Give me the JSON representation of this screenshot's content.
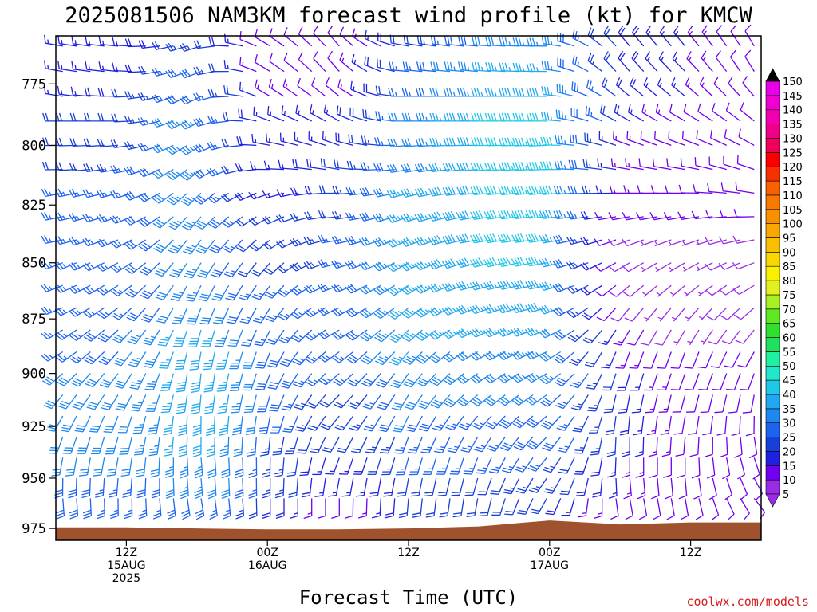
{
  "chart_data": {
    "type": "wind-barb-profile",
    "title": "2025081506 NAM3KM forecast wind profile (kt) for KMCW",
    "xlabel": "Forecast Time (UTC)",
    "ylabel": "",
    "y_ticks": [
      775,
      800,
      825,
      850,
      875,
      900,
      925,
      950,
      975
    ],
    "y_range_hPa": [
      981,
      756
    ],
    "x_ticks": [
      {
        "hour": 6,
        "lines": [
          "12Z",
          "15AUG",
          "2025"
        ]
      },
      {
        "hour": 18,
        "lines": [
          "00Z",
          "16AUG"
        ]
      },
      {
        "hour": 30,
        "lines": [
          "12Z"
        ]
      },
      {
        "hour": 42,
        "lines": [
          "00Z",
          "17AUG"
        ]
      },
      {
        "hour": 54,
        "lines": [
          "12Z"
        ]
      }
    ],
    "x_range_hours": [
      0,
      60
    ],
    "colorbar": {
      "levels": [
        5,
        10,
        15,
        20,
        25,
        30,
        35,
        40,
        45,
        50,
        55,
        60,
        65,
        70,
        75,
        80,
        85,
        90,
        95,
        100,
        105,
        110,
        115,
        120,
        125,
        130,
        135,
        140,
        145,
        150
      ],
      "colors": [
        "#9a2ce8",
        "#7000f0",
        "#2020e0",
        "#1840d8",
        "#1c64f0",
        "#1e88f0",
        "#20a8f0",
        "#20c8e8",
        "#20e8c8",
        "#20f0a0",
        "#20e060",
        "#30e030",
        "#60e820",
        "#a8f020",
        "#e0f020",
        "#f8f000",
        "#f8d800",
        "#f8c000",
        "#f8a800",
        "#f89000",
        "#f87800",
        "#f86000",
        "#f83000",
        "#f80000",
        "#f0005a",
        "#f00088",
        "#f000b0",
        "#f000d0",
        "#e800e8",
        "#000000"
      ]
    },
    "levels_hPa": [
      760,
      770,
      780,
      790,
      800,
      810,
      820,
      830,
      840,
      850,
      860,
      870,
      880,
      890,
      900,
      910,
      920,
      930,
      940,
      950,
      960
    ],
    "series": [
      {
        "hour": 0,
        "surface_hPa": 974.5,
        "barbs": [
          [
            280,
            15
          ],
          [
            280,
            15
          ],
          [
            280,
            15
          ],
          [
            270,
            20
          ],
          [
            270,
            20
          ],
          [
            270,
            20
          ],
          [
            260,
            25
          ],
          [
            260,
            25
          ],
          [
            260,
            25
          ],
          [
            250,
            25
          ],
          [
            250,
            25
          ],
          [
            250,
            25
          ],
          [
            240,
            25
          ],
          [
            240,
            25
          ],
          [
            230,
            30
          ],
          [
            220,
            30
          ],
          [
            210,
            30
          ],
          [
            200,
            30
          ],
          [
            190,
            30
          ],
          [
            180,
            30
          ],
          [
            175,
            30
          ]
        ]
      },
      {
        "hour": 6,
        "surface_hPa": 974.5,
        "barbs": [
          [
            275,
            15
          ],
          [
            275,
            15
          ],
          [
            270,
            20
          ],
          [
            270,
            20
          ],
          [
            265,
            20
          ],
          [
            260,
            25
          ],
          [
            255,
            25
          ],
          [
            250,
            25
          ],
          [
            245,
            25
          ],
          [
            240,
            25
          ],
          [
            235,
            25
          ],
          [
            230,
            25
          ],
          [
            225,
            30
          ],
          [
            220,
            30
          ],
          [
            215,
            30
          ],
          [
            210,
            30
          ],
          [
            200,
            30
          ],
          [
            195,
            30
          ],
          [
            190,
            30
          ],
          [
            185,
            25
          ],
          [
            180,
            25
          ]
        ]
      },
      {
        "hour": 12,
        "surface_hPa": 975.0,
        "barbs": [
          [
            250,
            25
          ],
          [
            245,
            30
          ],
          [
            240,
            30
          ],
          [
            240,
            35
          ],
          [
            235,
            35
          ],
          [
            230,
            35
          ],
          [
            225,
            35
          ],
          [
            220,
            35
          ],
          [
            215,
            35
          ],
          [
            210,
            35
          ],
          [
            205,
            35
          ],
          [
            200,
            35
          ],
          [
            195,
            40
          ],
          [
            190,
            40
          ],
          [
            185,
            40
          ],
          [
            185,
            40
          ],
          [
            180,
            40
          ],
          [
            180,
            40
          ],
          [
            175,
            35
          ],
          [
            175,
            35
          ],
          [
            170,
            30
          ]
        ]
      },
      {
        "hour": 18,
        "surface_hPa": 975.5,
        "barbs": [
          [
            300,
            10
          ],
          [
            300,
            10
          ],
          [
            300,
            15
          ],
          [
            290,
            15
          ],
          [
            280,
            15
          ],
          [
            270,
            15
          ],
          [
            250,
            15
          ],
          [
            240,
            20
          ],
          [
            230,
            20
          ],
          [
            220,
            20
          ],
          [
            215,
            25
          ],
          [
            210,
            25
          ],
          [
            205,
            25
          ],
          [
            200,
            30
          ],
          [
            200,
            30
          ],
          [
            195,
            30
          ],
          [
            190,
            30
          ],
          [
            185,
            25
          ],
          [
            180,
            25
          ],
          [
            180,
            25
          ],
          [
            180,
            20
          ]
        ]
      },
      {
        "hour": 24,
        "surface_hPa": 975.5,
        "barbs": [
          [
            320,
            10
          ],
          [
            320,
            10
          ],
          [
            310,
            10
          ],
          [
            300,
            15
          ],
          [
            290,
            15
          ],
          [
            280,
            20
          ],
          [
            270,
            20
          ],
          [
            265,
            20
          ],
          [
            260,
            25
          ],
          [
            255,
            25
          ],
          [
            250,
            25
          ],
          [
            245,
            25
          ],
          [
            240,
            25
          ],
          [
            235,
            25
          ],
          [
            230,
            25
          ],
          [
            225,
            20
          ],
          [
            220,
            20
          ],
          [
            210,
            20
          ],
          [
            200,
            15
          ],
          [
            190,
            15
          ],
          [
            180,
            10
          ]
        ]
      },
      {
        "hour": 30,
        "surface_hPa": 975.0,
        "barbs": [
          [
            280,
            20
          ],
          [
            275,
            25
          ],
          [
            270,
            25
          ],
          [
            270,
            30
          ],
          [
            265,
            30
          ],
          [
            260,
            30
          ],
          [
            255,
            35
          ],
          [
            250,
            35
          ],
          [
            245,
            35
          ],
          [
            240,
            35
          ],
          [
            235,
            35
          ],
          [
            230,
            35
          ],
          [
            225,
            35
          ],
          [
            220,
            35
          ],
          [
            215,
            30
          ],
          [
            210,
            30
          ],
          [
            205,
            30
          ],
          [
            200,
            25
          ],
          [
            195,
            25
          ],
          [
            190,
            20
          ],
          [
            185,
            20
          ]
        ]
      },
      {
        "hour": 36,
        "surface_hPa": 974.0,
        "barbs": [
          [
            275,
            30
          ],
          [
            275,
            35
          ],
          [
            270,
            35
          ],
          [
            270,
            40
          ],
          [
            270,
            40
          ],
          [
            265,
            40
          ],
          [
            265,
            40
          ],
          [
            260,
            40
          ],
          [
            260,
            40
          ],
          [
            255,
            40
          ],
          [
            255,
            35
          ],
          [
            250,
            35
          ],
          [
            245,
            35
          ],
          [
            240,
            30
          ],
          [
            235,
            30
          ],
          [
            230,
            30
          ],
          [
            220,
            25
          ],
          [
            210,
            25
          ],
          [
            200,
            25
          ],
          [
            195,
            20
          ],
          [
            190,
            20
          ]
        ]
      },
      {
        "hour": 42,
        "surface_hPa": 971.0,
        "barbs": [
          [
            270,
            35
          ],
          [
            270,
            35
          ],
          [
            270,
            40
          ],
          [
            270,
            40
          ],
          [
            268,
            45
          ],
          [
            268,
            45
          ],
          [
            265,
            45
          ],
          [
            265,
            45
          ],
          [
            262,
            40
          ],
          [
            260,
            40
          ],
          [
            258,
            40
          ],
          [
            255,
            40
          ],
          [
            250,
            35
          ],
          [
            245,
            35
          ],
          [
            240,
            35
          ],
          [
            235,
            30
          ],
          [
            230,
            30
          ],
          [
            225,
            30
          ],
          [
            220,
            25
          ],
          [
            215,
            25
          ],
          [
            210,
            20
          ]
        ]
      },
      {
        "hour": 48,
        "surface_hPa": 973.0,
        "barbs": [
          [
            320,
            20
          ],
          [
            320,
            20
          ],
          [
            310,
            20
          ],
          [
            300,
            20
          ],
          [
            290,
            15
          ],
          [
            280,
            15
          ],
          [
            270,
            15
          ],
          [
            260,
            10
          ],
          [
            250,
            10
          ],
          [
            240,
            10
          ],
          [
            230,
            10
          ],
          [
            220,
            10
          ],
          [
            210,
            15
          ],
          [
            200,
            15
          ],
          [
            195,
            20
          ],
          [
            190,
            20
          ],
          [
            185,
            20
          ],
          [
            180,
            20
          ],
          [
            180,
            15
          ],
          [
            175,
            15
          ],
          [
            170,
            10
          ]
        ]
      },
      {
        "hour": 54,
        "surface_hPa": 972.0,
        "barbs": [
          [
            320,
            15
          ],
          [
            315,
            15
          ],
          [
            310,
            15
          ],
          [
            300,
            10
          ],
          [
            290,
            10
          ],
          [
            280,
            10
          ],
          [
            270,
            10
          ],
          [
            260,
            10
          ],
          [
            250,
            5
          ],
          [
            240,
            5
          ],
          [
            230,
            5
          ],
          [
            220,
            5
          ],
          [
            210,
            5
          ],
          [
            200,
            10
          ],
          [
            200,
            10
          ],
          [
            195,
            10
          ],
          [
            190,
            10
          ],
          [
            185,
            10
          ],
          [
            180,
            10
          ],
          [
            175,
            10
          ],
          [
            170,
            10
          ]
        ]
      },
      {
        "hour": 60,
        "surface_hPa": 972.0,
        "barbs": [
          [
            330,
            10
          ],
          [
            330,
            10
          ],
          [
            320,
            10
          ],
          [
            310,
            10
          ],
          [
            300,
            10
          ],
          [
            290,
            10
          ],
          [
            280,
            10
          ],
          [
            270,
            10
          ],
          [
            260,
            10
          ],
          [
            250,
            10
          ],
          [
            240,
            10
          ],
          [
            230,
            10
          ],
          [
            220,
            10
          ],
          [
            210,
            10
          ],
          [
            200,
            10
          ],
          [
            190,
            10
          ],
          [
            180,
            10
          ],
          [
            170,
            10
          ],
          [
            160,
            10
          ],
          [
            150,
            10
          ],
          [
            140,
            10
          ]
        ]
      }
    ],
    "credit": "coolwx.com/models"
  }
}
